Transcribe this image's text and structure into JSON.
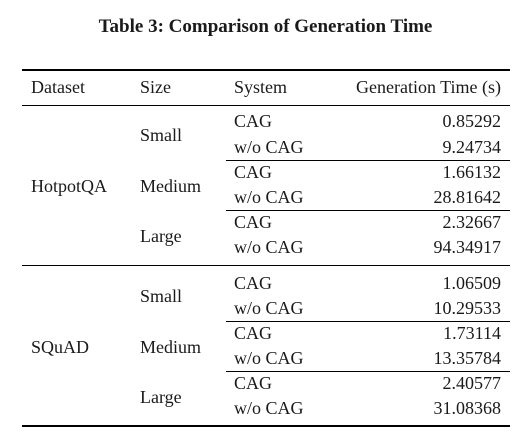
{
  "caption": "Table 3: Comparison of Generation Time",
  "header": {
    "dataset": "Dataset",
    "size": "Size",
    "system": "System",
    "time": "Generation Time (s)"
  },
  "groups": [
    {
      "dataset": "HotpotQA",
      "sizes": [
        {
          "size": "Small",
          "rows": [
            {
              "system": "CAG",
              "time": "0.85292"
            },
            {
              "system": "w/o CAG",
              "time": "9.24734"
            }
          ]
        },
        {
          "size": "Medium",
          "rows": [
            {
              "system": "CAG",
              "time": "1.66132"
            },
            {
              "system": "w/o CAG",
              "time": "28.81642"
            }
          ]
        },
        {
          "size": "Large",
          "rows": [
            {
              "system": "CAG",
              "time": "2.32667"
            },
            {
              "system": "w/o CAG",
              "time": "94.34917"
            }
          ]
        }
      ]
    },
    {
      "dataset": "SQuAD",
      "sizes": [
        {
          "size": "Small",
          "rows": [
            {
              "system": "CAG",
              "time": "1.06509"
            },
            {
              "system": "w/o CAG",
              "time": "10.29533"
            }
          ]
        },
        {
          "size": "Medium",
          "rows": [
            {
              "system": "CAG",
              "time": "1.73114"
            },
            {
              "system": "w/o CAG",
              "time": "13.35784"
            }
          ]
        },
        {
          "size": "Large",
          "rows": [
            {
              "system": "CAG",
              "time": "2.40577"
            },
            {
              "system": "w/o CAG",
              "time": "31.08368"
            }
          ]
        }
      ]
    }
  ]
}
